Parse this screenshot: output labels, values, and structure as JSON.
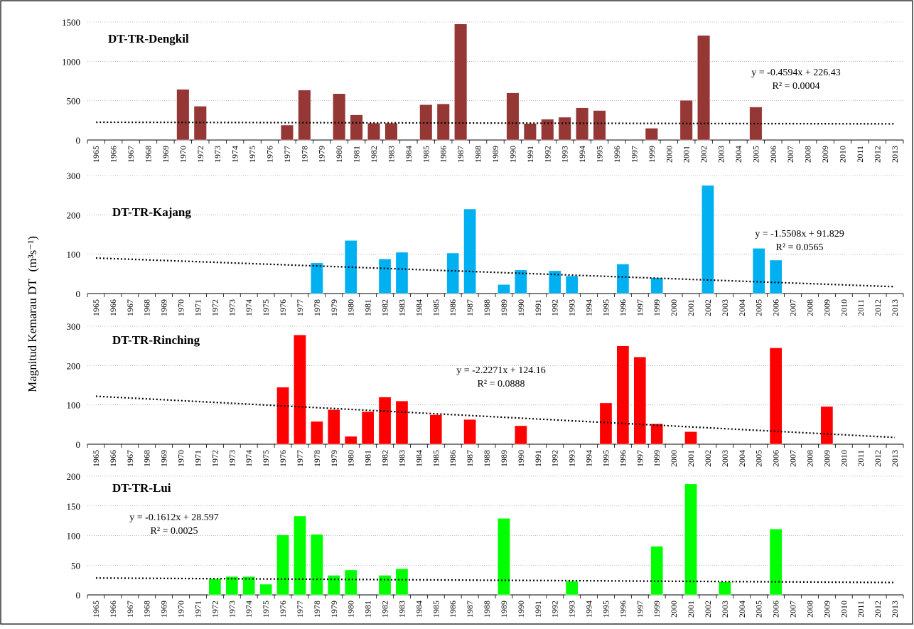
{
  "ylabel_text": "Magnitud Kemarau DT",
  "ylabel_units": "(m³s⁻¹)",
  "chart_data": [
    {
      "type": "bar",
      "title": "DT-TR-Dengkil",
      "color": "#953735",
      "ylim": [
        0,
        1500
      ],
      "yticks": [
        0,
        500,
        1000,
        1500
      ],
      "categories": [
        "1965",
        "1966",
        "1967",
        "1968",
        "1969",
        "1970",
        "1972",
        "1973",
        "1974",
        "1975",
        "1976",
        "1977",
        "1978",
        "1979",
        "1980",
        "1981",
        "1982",
        "1983",
        "1984",
        "1985",
        "1986",
        "1987",
        "1988",
        "1989",
        "1990",
        "1991",
        "1992",
        "1993",
        "1994",
        "1995",
        "1996",
        "1997",
        "1999",
        "2000",
        "2001",
        "2002",
        "2003",
        "2004",
        "2005",
        "2006",
        "2007",
        "2008",
        "2009",
        "2010",
        "2011",
        "2012",
        "2013"
      ],
      "values": [
        0,
        0,
        0,
        0,
        0,
        645,
        430,
        0,
        0,
        0,
        0,
        190,
        635,
        0,
        590,
        320,
        215,
        215,
        0,
        450,
        460,
        1475,
        0,
        0,
        600,
        210,
        265,
        290,
        410,
        375,
        0,
        0,
        150,
        0,
        505,
        1330,
        0,
        0,
        420,
        0,
        0,
        0,
        0,
        0,
        0,
        0,
        0
      ],
      "trend_equation": "y = -0.4594x + 226.43",
      "r2": "R² = 0.0004",
      "trend": {
        "slope": -0.4594,
        "intercept": 226.43
      }
    },
    {
      "type": "bar",
      "title": "DT-TR-Kajang",
      "color": "#00B0F0",
      "ylim": [
        0,
        300
      ],
      "yticks": [
        0,
        100,
        200,
        300
      ],
      "categories": [
        "1965",
        "1966",
        "1967",
        "1968",
        "1969",
        "1970",
        "1971",
        "1972",
        "1973",
        "1974",
        "1975",
        "1976",
        "1977",
        "1978",
        "1979",
        "1980",
        "1981",
        "1982",
        "1983",
        "1984",
        "1985",
        "1986",
        "1987",
        "1988",
        "1989",
        "1990",
        "1991",
        "1992",
        "1993",
        "1994",
        "1995",
        "1996",
        "1997",
        "1999",
        "2000",
        "2001",
        "2002",
        "2003",
        "2004",
        "2005",
        "2006",
        "2007",
        "2008",
        "2009",
        "2010",
        "2011",
        "2012",
        "2013"
      ],
      "values": [
        0,
        0,
        0,
        0,
        0,
        0,
        0,
        0,
        0,
        0,
        0,
        0,
        0,
        78,
        0,
        135,
        0,
        88,
        105,
        0,
        0,
        103,
        215,
        0,
        23,
        60,
        0,
        58,
        45,
        0,
        0,
        75,
        0,
        40,
        0,
        0,
        275,
        0,
        0,
        115,
        85,
        0,
        0,
        0,
        0,
        0,
        0,
        0
      ],
      "trend_equation": "y = -1.5508x + 91.829",
      "r2": "R² = 0.0565",
      "trend": {
        "slope": -1.5508,
        "intercept": 91.829
      }
    },
    {
      "type": "bar",
      "title": "DT-TR-Rinching",
      "color": "#FF0000",
      "ylim": [
        0,
        300
      ],
      "yticks": [
        0,
        100,
        200,
        300
      ],
      "categories": [
        "1965",
        "1966",
        "1967",
        "1968",
        "1969",
        "1970",
        "1971",
        "1972",
        "1973",
        "1974",
        "1975",
        "1976",
        "1977",
        "1978",
        "1979",
        "1980",
        "1981",
        "1982",
        "1983",
        "1984",
        "1985",
        "1986",
        "1987",
        "1988",
        "1989",
        "1990",
        "1991",
        "1992",
        "1993",
        "1994",
        "1995",
        "1996",
        "1997",
        "1999",
        "2000",
        "2001",
        "2002",
        "2003",
        "2004",
        "2005",
        "2006",
        "2007",
        "2008",
        "2009",
        "2010",
        "2011",
        "2012",
        "2013"
      ],
      "values": [
        0,
        0,
        0,
        0,
        0,
        0,
        0,
        0,
        0,
        0,
        0,
        145,
        278,
        58,
        88,
        20,
        83,
        120,
        110,
        0,
        75,
        0,
        63,
        0,
        0,
        47,
        0,
        0,
        0,
        0,
        105,
        250,
        222,
        52,
        0,
        32,
        0,
        0,
        0,
        0,
        245,
        0,
        0,
        96,
        0,
        0,
        0,
        0
      ],
      "trend_equation": "y = -2.2271x + 124.16",
      "r2": "R² = 0.0888",
      "trend": {
        "slope": -2.2271,
        "intercept": 124.16
      }
    },
    {
      "type": "bar",
      "title": "DT-TR-Lui",
      "color": "#00FF00",
      "ylim": [
        0,
        200
      ],
      "yticks": [
        0,
        50,
        100,
        150,
        200
      ],
      "categories": [
        "1965",
        "1966",
        "1967",
        "1968",
        "1969",
        "1970",
        "1971",
        "1972",
        "1973",
        "1974",
        "1975",
        "1976",
        "1977",
        "1978",
        "1979",
        "1980",
        "1981",
        "1982",
        "1983",
        "1984",
        "1985",
        "1986",
        "1987",
        "1988",
        "1989",
        "1990",
        "1991",
        "1992",
        "1993",
        "1994",
        "1995",
        "1996",
        "1997",
        "1999",
        "2000",
        "2001",
        "2002",
        "2003",
        "2004",
        "2005",
        "2006",
        "2007",
        "2008",
        "2009",
        "2010",
        "2011",
        "2012",
        "2013"
      ],
      "values": [
        0,
        0,
        0,
        0,
        0,
        0,
        0,
        27,
        31,
        31,
        18,
        101,
        133,
        102,
        33,
        42,
        0,
        33,
        44,
        0,
        0,
        0,
        0,
        0,
        129,
        0,
        0,
        0,
        23,
        0,
        0,
        0,
        0,
        82,
        0,
        187,
        0,
        22,
        0,
        0,
        111,
        0,
        0,
        0,
        0,
        0,
        0,
        0
      ],
      "trend_equation": "y = -0.1612x + 28.597",
      "r2": "R² = 0.0025",
      "trend": {
        "slope": -0.1612,
        "intercept": 28.597
      }
    }
  ]
}
